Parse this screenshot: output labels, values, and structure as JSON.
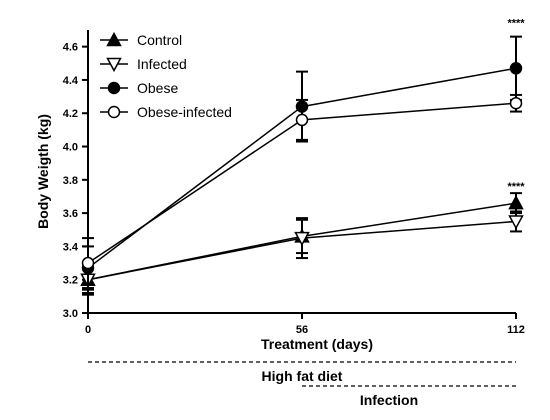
{
  "chart_data": {
    "type": "line",
    "xlabel": "Treatment (days)",
    "ylabel": "Body Weigth (kg)",
    "x": [
      0,
      56,
      112
    ],
    "xticks": [
      "0",
      "56",
      "112"
    ],
    "xlim": [
      0,
      112
    ],
    "ylim": [
      3.0,
      4.7
    ],
    "yticks": [
      "3.0",
      "3.2",
      "3.4",
      "3.6",
      "3.8",
      "4.0",
      "4.2",
      "4.4",
      "4.6"
    ],
    "grid": false,
    "legend_position": "top-left",
    "series": [
      {
        "name": "Control",
        "marker": "triangle-up-filled",
        "values": [
          3.2,
          3.46,
          3.66
        ],
        "errors": [
          0.09,
          0.1,
          0.06
        ]
      },
      {
        "name": "Infected",
        "marker": "triangle-down-open",
        "values": [
          3.2,
          3.45,
          3.55
        ],
        "errors": [
          0.08,
          0.12,
          0.06
        ]
      },
      {
        "name": "Obese",
        "marker": "circle-filled",
        "values": [
          3.27,
          4.24,
          4.47
        ],
        "errors": [
          0.13,
          0.21,
          0.19
        ]
      },
      {
        "name": "Obese-infected",
        "marker": "circle-open",
        "values": [
          3.3,
          4.16,
          4.26
        ],
        "errors": [
          0.15,
          0.12,
          0.05
        ]
      }
    ],
    "annotations": [
      {
        "text": "****",
        "x": 112,
        "y": 4.72
      },
      {
        "text": "****",
        "x": 112,
        "y": 3.74
      }
    ],
    "phases": [
      {
        "label": "High fat diet",
        "from": 0,
        "to": 112
      },
      {
        "label": "Infection",
        "from": 56,
        "to": 112
      }
    ]
  }
}
